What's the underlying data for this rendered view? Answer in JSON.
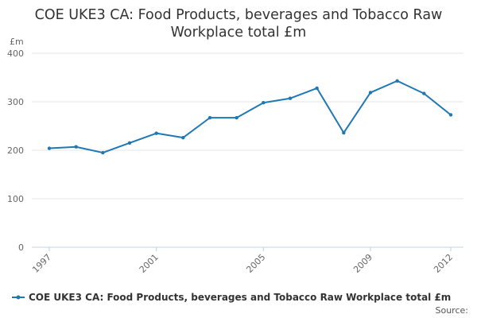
{
  "chart_data": {
    "type": "line",
    "title_lines": [
      "COE UKE3 CA: Food Products, beverages and Tobacco Raw",
      "Workplace total £m"
    ],
    "y_unit": "£m",
    "ylim": [
      0,
      400
    ],
    "y_ticks": [
      "0",
      "100",
      "200",
      "300",
      "400"
    ],
    "x_tick_labels": [
      "1997",
      "2001",
      "2005",
      "2009",
      "2012"
    ],
    "x_tick_years": [
      1997,
      2001,
      2005,
      2009,
      2012
    ],
    "grid": true,
    "legend_position": "bottom-left",
    "series": [
      {
        "name": "COE UKE3 CA: Food Products, beverages and Tobacco Raw Workplace total £m",
        "color": "#1f78b4",
        "x": [
          1997,
          1998,
          1999,
          2000,
          2001,
          2002,
          2003,
          2004,
          2005,
          2006,
          2007,
          2008,
          2009,
          2010,
          2011,
          2012
        ],
        "values": [
          204,
          207,
          195,
          215,
          235,
          226,
          267,
          267,
          298,
          307,
          328,
          236,
          319,
          343,
          317,
          273
        ]
      }
    ]
  },
  "source_label": "Source:"
}
